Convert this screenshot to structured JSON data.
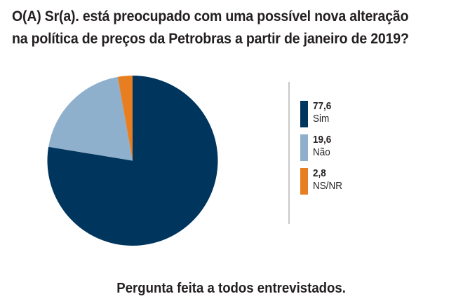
{
  "title": {
    "line1": "O(A) Sr(a). está preocupado com uma possível nova alteração",
    "line2": "na política de preços da Petrobras a partir de janeiro de 2019?"
  },
  "footer": "Pergunta feita a todos entrevistados.",
  "legend": [
    {
      "value": "77,6",
      "label": "Sim",
      "color": "#00355e"
    },
    {
      "value": "19,6",
      "label": "Não",
      "color": "#8fb0cc"
    },
    {
      "value": "2,8",
      "label": "NS/NR",
      "color": "#e87e22"
    }
  ],
  "chart_data": {
    "type": "pie",
    "title": "O(A) Sr(a). está preocupado com uma possível nova alteração na política de preços da Petrobras a partir de janeiro de 2019?",
    "categories": [
      "Sim",
      "Não",
      "NS/NR"
    ],
    "values": [
      77.6,
      19.6,
      2.8
    ],
    "colors": [
      "#00355e",
      "#8fb0cc",
      "#e87e22"
    ],
    "start_angle": "12 o'clock, clockwise",
    "legend_position": "right",
    "note": "Pergunta feita a todos entrevistados."
  }
}
